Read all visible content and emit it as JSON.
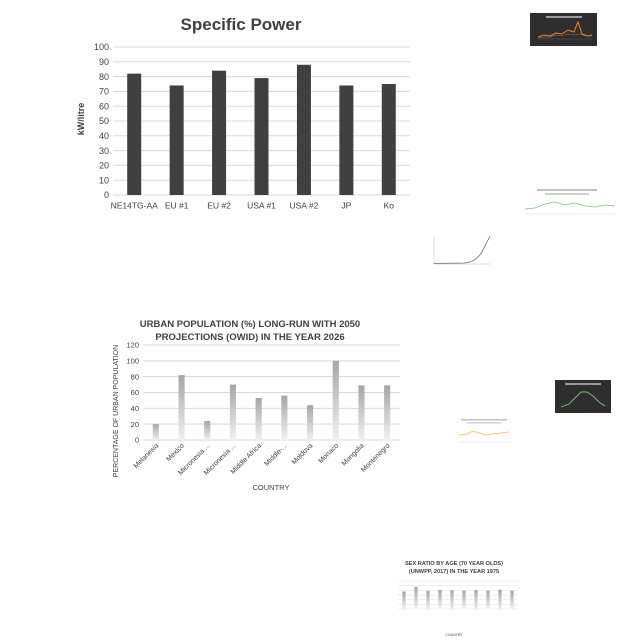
{
  "colors": {
    "bar_dark": "#404040",
    "grid": "#d9d9d9",
    "axis_text": "#404040",
    "thumb_dark_bg": "#2e2e2e",
    "thumb_orange": "#e08a3c",
    "thumb_green": "#7fbf7f",
    "thumb_yellow": "#f0c040"
  },
  "chart_data": [
    {
      "type": "bar",
      "title": "Specific Power",
      "ylabel": "kW/litre",
      "xlabel": "",
      "categories": [
        "NE14TG-AA",
        "EU #1",
        "EU #2",
        "USA #1",
        "USA #2",
        "JP",
        "Ko"
      ],
      "values": [
        82,
        74,
        84,
        79,
        88,
        74,
        75
      ],
      "ylim": [
        0,
        100
      ],
      "yticks": [
        0,
        10,
        20,
        30,
        40,
        50,
        60,
        70,
        80,
        90,
        100
      ],
      "grid": true,
      "legend": "none"
    },
    {
      "type": "bar",
      "title_lines": [
        "URBAN POPULATION (%) LONG-RUN WITH 2050",
        "PROJECTIONS (OWID) IN THE YEAR 2026"
      ],
      "ylabel": "PERCENTAGE OF URBAN POPULATION",
      "xlabel": "COUNTRY",
      "categories": [
        "Melanesia",
        "Mexico",
        "Micronesia ...",
        "Micronesia ...",
        "Middle Africa",
        "Middle-...",
        "Moldova",
        "Monaco",
        "Mongolia",
        "Montenegro"
      ],
      "values": [
        20,
        82,
        24,
        70,
        53,
        56,
        44,
        100,
        69,
        69
      ],
      "ylim": [
        0,
        120
      ],
      "yticks": [
        0,
        20,
        40,
        60,
        80,
        100,
        120
      ],
      "grid": true,
      "legend": "none"
    },
    {
      "type": "bar",
      "title_lines": [
        "SEX RATIO BY AGE (70 YEAR OLDS)",
        "(UNWPP, 2017) IN THE YEAR 1975"
      ],
      "ylabel": "",
      "xlabel": "COUNTRY",
      "categories": [
        "",
        "",
        "",
        "",
        "",
        "",
        "",
        "",
        "",
        ""
      ],
      "values": [
        75,
        95,
        78,
        82,
        80,
        79,
        81,
        78,
        83,
        78
      ],
      "ylim": [
        0,
        120
      ],
      "grid": true,
      "legend": "none"
    }
  ]
}
